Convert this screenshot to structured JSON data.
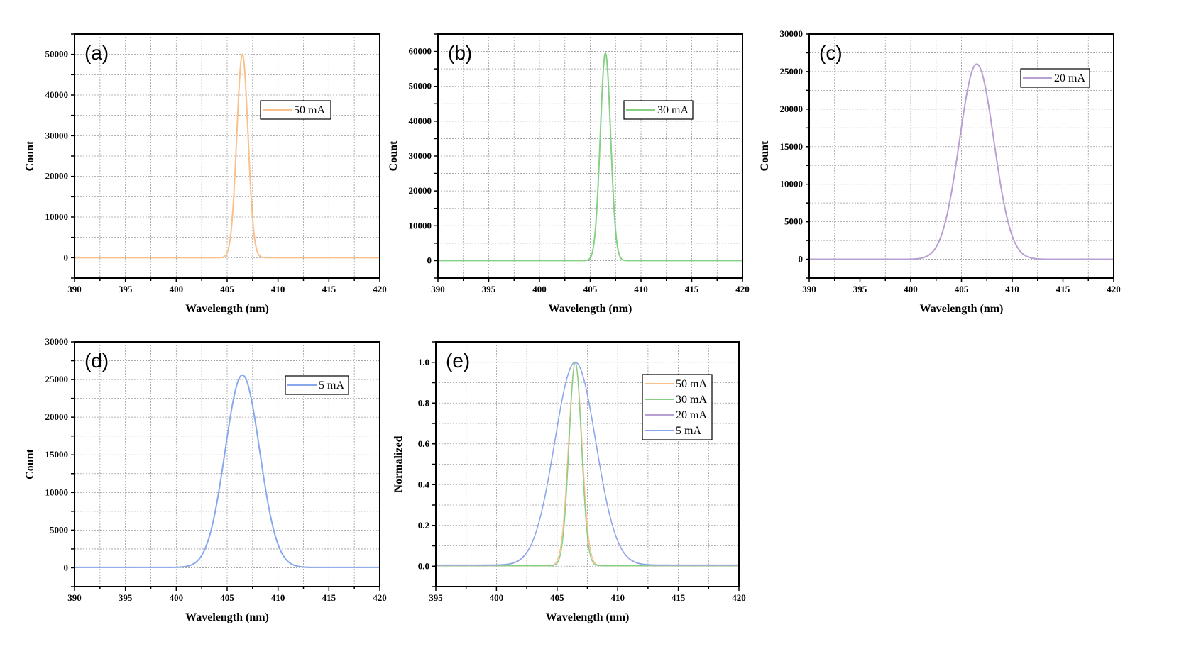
{
  "chart_data": [
    {
      "panel": "(a)",
      "type": "line",
      "xlabel": "Wavelength (nm)",
      "ylabel": "Count",
      "xlim": [
        390,
        420
      ],
      "ylim": [
        -5000,
        55000
      ],
      "xticks": [
        390,
        395,
        400,
        405,
        410,
        415,
        420
      ],
      "yticks": [
        0,
        10000,
        20000,
        30000,
        40000,
        50000
      ],
      "series": [
        {
          "name": "50 mA",
          "color": "#f9c08b",
          "peak_center_nm": 406.5,
          "peak_height": 50000,
          "fwhm_nm": 1.3,
          "baseline": 0
        }
      ]
    },
    {
      "panel": "(b)",
      "type": "line",
      "xlabel": "Wavelength (nm)",
      "ylabel": "Count",
      "xlim": [
        390,
        420
      ],
      "ylim": [
        -5000,
        65000
      ],
      "xticks": [
        390,
        395,
        400,
        405,
        410,
        415,
        420
      ],
      "yticks": [
        0,
        10000,
        20000,
        30000,
        40000,
        50000,
        60000
      ],
      "series": [
        {
          "name": "30 mA",
          "color": "#86d086",
          "peak_center_nm": 406.5,
          "peak_height": 59500,
          "fwhm_nm": 1.2,
          "baseline": 0
        }
      ]
    },
    {
      "panel": "(c)",
      "type": "line",
      "xlabel": "Wavelength (nm)",
      "ylabel": "Count",
      "xlim": [
        390,
        420
      ],
      "ylim": [
        -2500,
        30000
      ],
      "xticks": [
        390,
        395,
        400,
        405,
        410,
        415,
        420
      ],
      "yticks": [
        0,
        5000,
        10000,
        15000,
        20000,
        25000,
        30000
      ],
      "series": [
        {
          "name": "20 mA",
          "color": "#b8a0d2",
          "peak_center_nm": 406.5,
          "peak_height": 26000,
          "fwhm_nm": 4.0,
          "baseline": 0
        }
      ]
    },
    {
      "panel": "(d)",
      "type": "line",
      "xlabel": "Wavelength (nm)",
      "ylabel": "Count",
      "xlim": [
        390,
        420
      ],
      "ylim": [
        -2500,
        30000
      ],
      "xticks": [
        390,
        395,
        400,
        405,
        410,
        415,
        420
      ],
      "yticks": [
        0,
        5000,
        10000,
        15000,
        20000,
        25000,
        30000
      ],
      "series": [
        {
          "name": "5 mA",
          "color": "#88a8ee",
          "peak_center_nm": 406.5,
          "peak_height": 25600,
          "fwhm_nm": 4.0,
          "baseline": 50
        }
      ]
    },
    {
      "panel": "(e)",
      "type": "line",
      "xlabel": "Wavelength (nm)",
      "ylabel": "Normalized",
      "xlim": [
        395,
        420
      ],
      "ylim": [
        -0.1,
        1.1
      ],
      "xticks": [
        395,
        400,
        405,
        410,
        415,
        420
      ],
      "yticks": [
        0.0,
        0.2,
        0.4,
        0.6,
        0.8,
        1.0
      ],
      "series": [
        {
          "name": "50 mA",
          "color": "#f9c08b",
          "peak_center_nm": 406.5,
          "peak_height": 1.0,
          "fwhm_nm": 1.3,
          "baseline": 0.002
        },
        {
          "name": "30 mA",
          "color": "#86d086",
          "peak_center_nm": 406.5,
          "peak_height": 1.0,
          "fwhm_nm": 1.2,
          "baseline": 0.002
        },
        {
          "name": "20 mA",
          "color": "#b8a0d2",
          "peak_center_nm": 406.5,
          "peak_height": 1.0,
          "fwhm_nm": 4.0,
          "baseline": 0.004
        },
        {
          "name": "5 mA",
          "color": "#88a8ee",
          "peak_center_nm": 406.5,
          "peak_height": 1.0,
          "fwhm_nm": 4.0,
          "baseline": 0.006
        }
      ]
    }
  ]
}
